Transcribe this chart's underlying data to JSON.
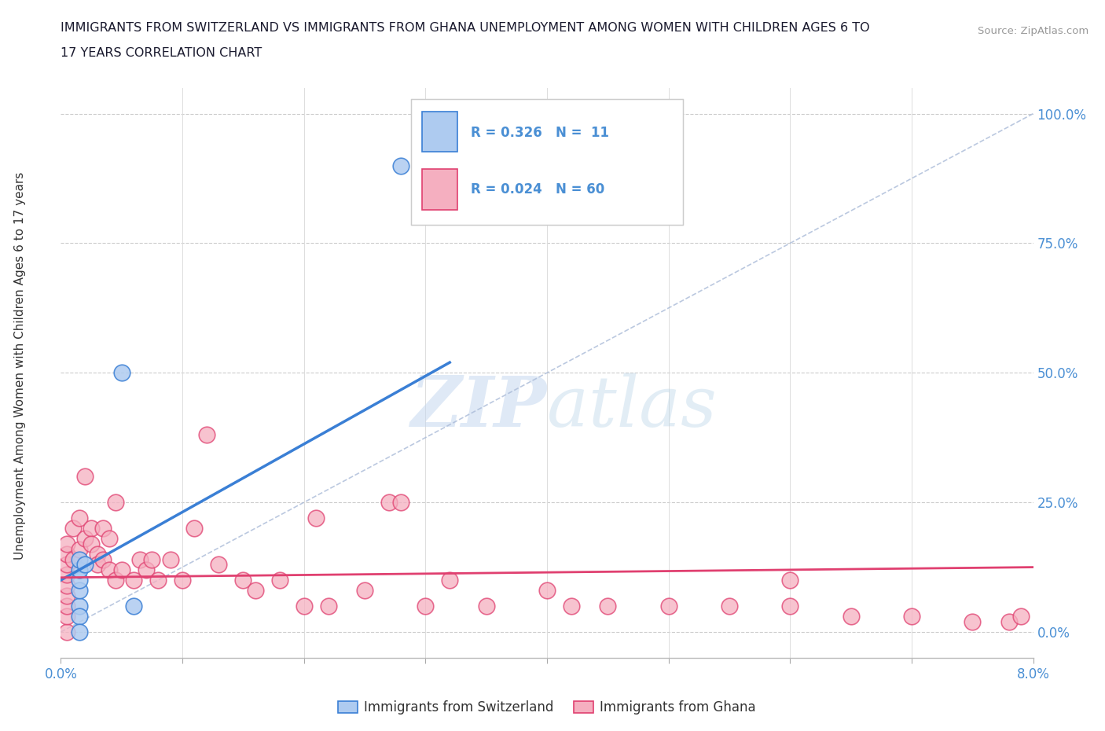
{
  "title_line1": "IMMIGRANTS FROM SWITZERLAND VS IMMIGRANTS FROM GHANA UNEMPLOYMENT AMONG WOMEN WITH CHILDREN AGES 6 TO",
  "title_line2": "17 YEARS CORRELATION CHART",
  "source": "Source: ZipAtlas.com",
  "ylabel": "Unemployment Among Women with Children Ages 6 to 17 years",
  "xlim": [
    0.0,
    8.0
  ],
  "ylim": [
    -5.0,
    105.0
  ],
  "yticks": [
    0,
    25,
    50,
    75,
    100
  ],
  "ytick_labels": [
    "0.0%",
    "25.0%",
    "50.0%",
    "75.0%",
    "100.0%"
  ],
  "legend_r_switzerland": "R = 0.326",
  "legend_n_switzerland": "N =  11",
  "legend_r_ghana": "R = 0.024",
  "legend_n_ghana": "N = 60",
  "color_switzerland": "#aecbf0",
  "color_ghana": "#f5afc0",
  "color_switzerland_line": "#3a7fd5",
  "color_ghana_line": "#e04070",
  "color_diagonal": "#aabbd8",
  "background_color": "#ffffff",
  "watermark_zip": "ZIP",
  "watermark_atlas": "atlas",
  "sw_trend_x0": 0.0,
  "sw_trend_y0": 10.0,
  "sw_trend_x1": 3.2,
  "sw_trend_y1": 52.0,
  "gh_trend_x0": 0.0,
  "gh_trend_y0": 10.5,
  "gh_trend_x1": 8.0,
  "gh_trend_y1": 12.5,
  "switzerland_x": [
    0.15,
    0.15,
    0.15,
    0.15,
    0.15,
    0.2,
    0.5,
    2.8,
    0.6,
    0.15,
    0.15
  ],
  "switzerland_y": [
    5.0,
    8.0,
    10.0,
    12.0,
    14.0,
    13.0,
    50.0,
    90.0,
    5.0,
    3.0,
    0.0
  ],
  "ghana_x": [
    0.05,
    0.05,
    0.05,
    0.05,
    0.05,
    0.05,
    0.05,
    0.05,
    0.05,
    0.1,
    0.1,
    0.15,
    0.15,
    0.2,
    0.2,
    0.25,
    0.25,
    0.3,
    0.3,
    0.35,
    0.35,
    0.4,
    0.4,
    0.45,
    0.45,
    0.5,
    0.6,
    0.65,
    0.7,
    0.75,
    0.8,
    0.9,
    1.0,
    1.1,
    1.2,
    1.3,
    1.5,
    1.6,
    1.8,
    2.0,
    2.1,
    2.2,
    2.5,
    2.7,
    3.0,
    3.5,
    4.0,
    4.5,
    5.0,
    5.5,
    6.0,
    6.0,
    6.5,
    7.0,
    7.5,
    7.8,
    7.9,
    4.2,
    3.2,
    2.8
  ],
  "ghana_y": [
    0.0,
    3.0,
    5.0,
    7.0,
    9.0,
    11.0,
    13.0,
    15.0,
    17.0,
    14.0,
    20.0,
    16.0,
    22.0,
    18.0,
    30.0,
    20.0,
    17.0,
    15.0,
    13.0,
    20.0,
    14.0,
    18.0,
    12.0,
    10.0,
    25.0,
    12.0,
    10.0,
    14.0,
    12.0,
    14.0,
    10.0,
    14.0,
    10.0,
    20.0,
    38.0,
    13.0,
    10.0,
    8.0,
    10.0,
    5.0,
    22.0,
    5.0,
    8.0,
    25.0,
    5.0,
    5.0,
    8.0,
    5.0,
    5.0,
    5.0,
    5.0,
    10.0,
    3.0,
    3.0,
    2.0,
    2.0,
    3.0,
    5.0,
    10.0,
    25.0
  ]
}
